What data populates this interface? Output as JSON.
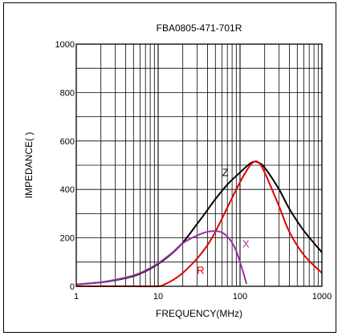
{
  "chart_data": {
    "type": "line",
    "title": "FBA0805-471-701R",
    "xlabel": "FREQUENCY(MHz)",
    "ylabel": "IMPEDANCE(  )",
    "x_scale": "log",
    "xlim": [
      1,
      1000
    ],
    "ylim": [
      0,
      1000
    ],
    "x_ticks": [
      1,
      10,
      100,
      1000
    ],
    "x_tick_labels": [
      "1",
      "10",
      "100",
      "1000"
    ],
    "y_ticks": [
      0,
      200,
      400,
      600,
      800,
      1000
    ],
    "y_tick_labels": [
      "0",
      "200",
      "400",
      "600",
      "800",
      "1000"
    ],
    "grid": true,
    "series": [
      {
        "name": "Z",
        "color": "#000000",
        "x": [
          1,
          2,
          3,
          5,
          7,
          10,
          15,
          20,
          30,
          40,
          50,
          70,
          100,
          130,
          150,
          170,
          200,
          300,
          400,
          600,
          1000
        ],
        "y": [
          7,
          16,
          25,
          42,
          62,
          92,
          138,
          180,
          258,
          315,
          360,
          420,
          470,
          505,
          515,
          510,
          490,
          400,
          320,
          230,
          140
        ]
      },
      {
        "name": "R",
        "color": "#e00000",
        "x": [
          1,
          5,
          10,
          12,
          15,
          20,
          30,
          40,
          50,
          70,
          100,
          130,
          150,
          170,
          200,
          300,
          400,
          600,
          1000
        ],
        "y": [
          0,
          0,
          0,
          8,
          25,
          55,
          115,
          170,
          225,
          325,
          430,
          495,
          515,
          510,
          470,
          330,
          225,
          130,
          55
        ]
      },
      {
        "name": "X",
        "color": "#9933a0",
        "x": [
          1,
          2,
          3,
          5,
          7,
          10,
          15,
          20,
          30,
          40,
          50,
          60,
          70,
          80,
          90,
          100,
          110,
          120
        ],
        "y": [
          8,
          17,
          27,
          45,
          65,
          95,
          140,
          178,
          210,
          225,
          228,
          222,
          205,
          180,
          145,
          100,
          55,
          10
        ]
      }
    ],
    "annotations": [
      {
        "text": "Z",
        "x": 66,
        "y": 455,
        "color": "#000000"
      },
      {
        "text": "R",
        "x": 33,
        "y": 52,
        "color": "#e00000"
      },
      {
        "text": "X",
        "x": 118,
        "y": 160,
        "color": "#9933a0"
      }
    ]
  }
}
